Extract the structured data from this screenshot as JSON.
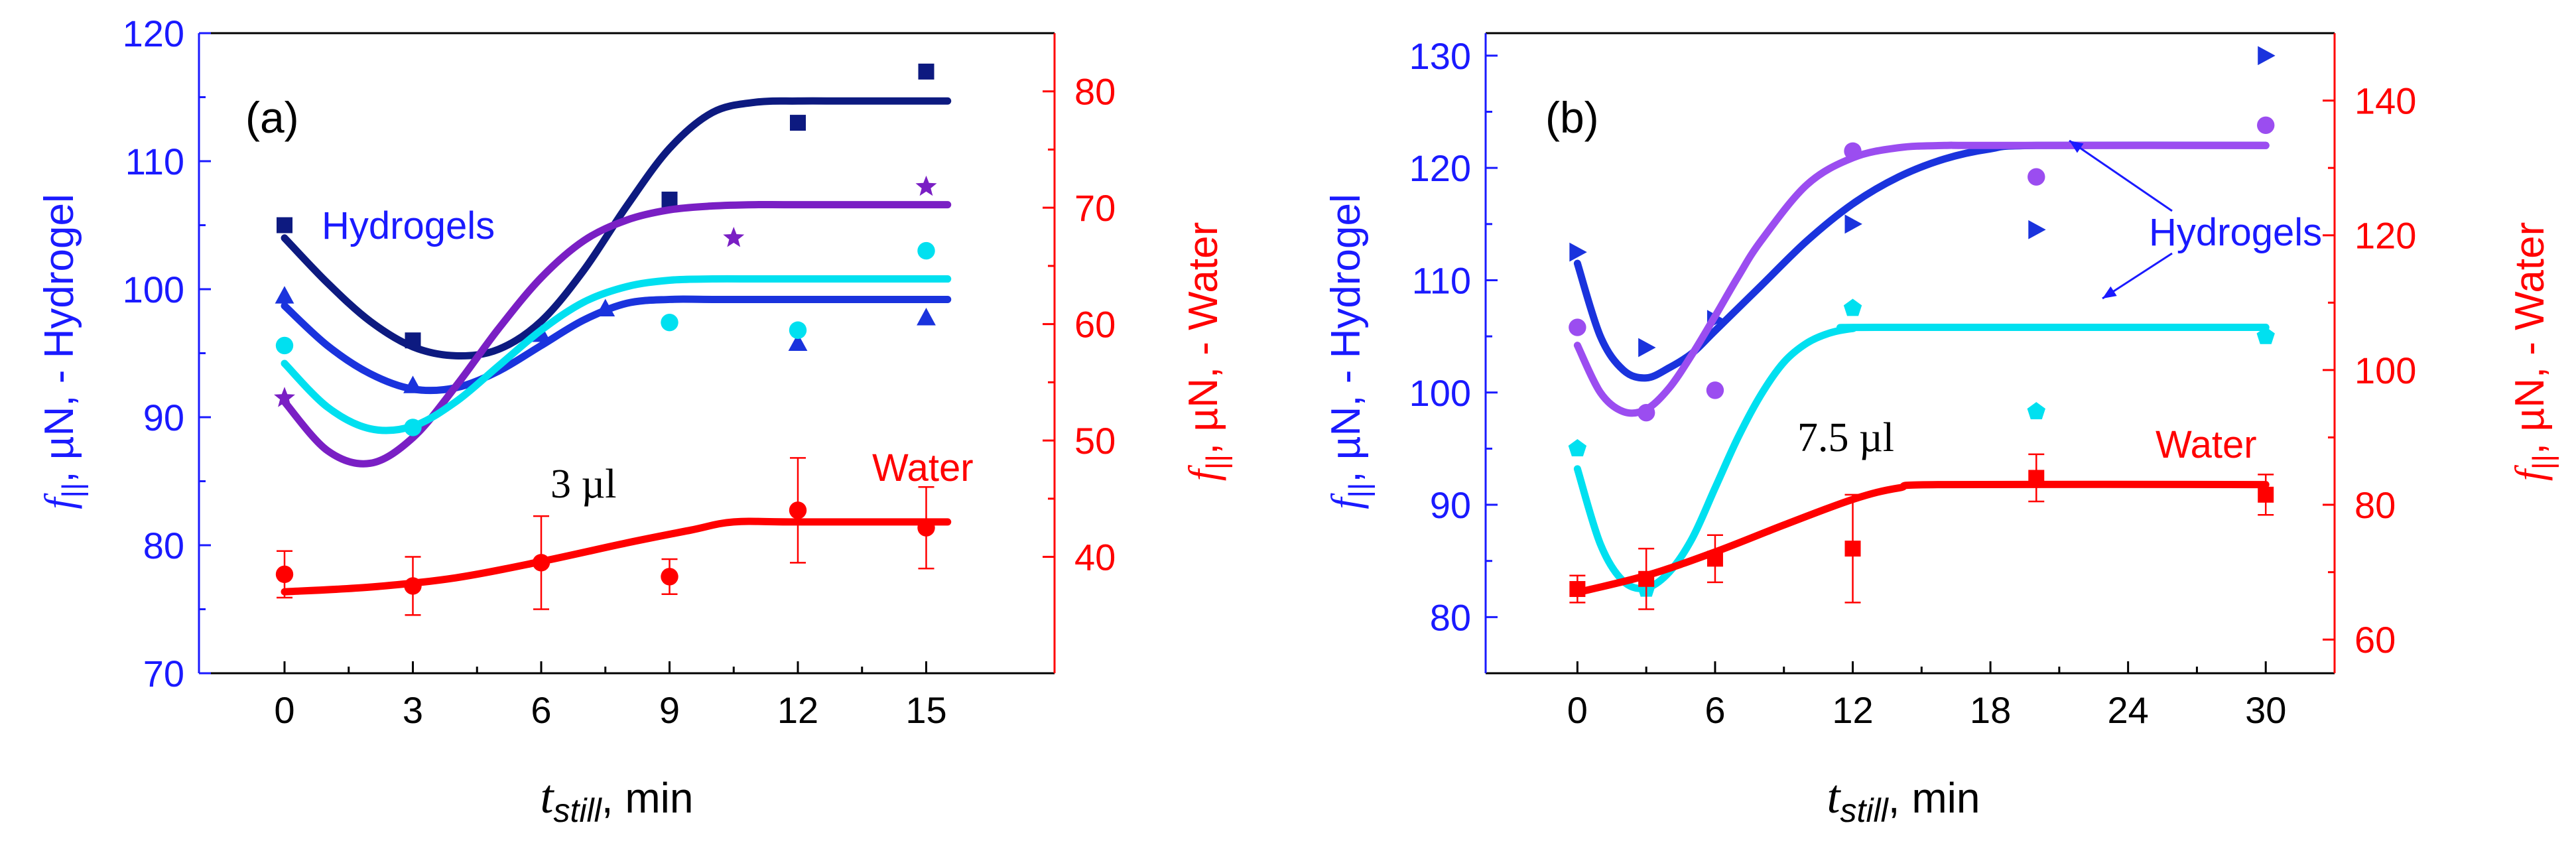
{
  "chart_data": [
    {
      "type": "scatter",
      "panel_label": "(a)",
      "volume_label": "3 µl",
      "xlabel": {
        "main": "t",
        "sub": "still",
        "rest": ", min"
      },
      "ylabel_left": {
        "main": "f",
        "sub": "||",
        "rest": ", µN, - Hydrogel"
      },
      "ylabel_right": {
        "main": "f",
        "sub": "||",
        "rest": ", µN, - Water"
      },
      "xlim": [
        -2,
        18
      ],
      "ylim_left": [
        70,
        120
      ],
      "ylim_right": [
        30,
        85
      ],
      "xticks": [
        0,
        3,
        6,
        9,
        12,
        15
      ],
      "yticks_left": [
        70,
        80,
        90,
        100,
        110,
        120
      ],
      "yticks_right": [
        40,
        50,
        60,
        70,
        80
      ],
      "annotations": {
        "hydrogels": "Hydrogels",
        "water": "Water"
      },
      "colors": {
        "left_axis": "#1a1aff",
        "right_axis": "#ff0000"
      },
      "series": [
        {
          "color": "#0d1a80",
          "marker": "square",
          "axis": "left",
          "x": [
            0,
            3,
            9,
            12,
            15
          ],
          "y": [
            105,
            96,
            107,
            113,
            117
          ],
          "fit_x": [
            0,
            1,
            2,
            3,
            4,
            5,
            6,
            7,
            8,
            9,
            10,
            11,
            12,
            13,
            14,
            15.5
          ],
          "fit_y": [
            104,
            100.5,
            97.5,
            95.5,
            94.8,
            95.3,
            97.5,
            101.5,
            106.5,
            111,
            113.8,
            114.6,
            114.7,
            114.7,
            114.7,
            114.7
          ]
        },
        {
          "color": "#1a33dd",
          "marker": "triangle-up",
          "axis": "left",
          "x": [
            0,
            3,
            6,
            7.5,
            12,
            15
          ],
          "y": [
            99.5,
            92.5,
            96.5,
            98.5,
            95.8,
            97.8
          ],
          "fit_x": [
            0,
            1,
            2,
            3,
            4,
            5,
            6,
            7,
            8,
            9,
            10,
            12,
            15.5
          ],
          "fit_y": [
            98.7,
            95.6,
            93.4,
            92.2,
            92.3,
            93.6,
            95.6,
            97.6,
            98.9,
            99.2,
            99.2,
            99.2,
            99.2
          ]
        },
        {
          "color": "#7a1fc4",
          "marker": "star",
          "axis": "left",
          "x": [
            0,
            10.5,
            15
          ],
          "y": [
            91.5,
            104,
            108
          ],
          "fit_x": [
            0,
            1,
            2,
            3,
            4,
            5,
            6,
            7,
            8,
            9,
            10,
            11,
            12,
            15.5
          ],
          "fit_y": [
            91.2,
            87.4,
            86.4,
            88.4,
            92.4,
            96.9,
            100.9,
            103.8,
            105.4,
            106.2,
            106.5,
            106.6,
            106.6,
            106.6
          ]
        },
        {
          "color": "#00e0f0",
          "marker": "circle",
          "axis": "left",
          "x": [
            0,
            3,
            9,
            12,
            15
          ],
          "y": [
            95.6,
            89.2,
            97.4,
            96.8,
            103
          ],
          "fit_x": [
            0,
            1,
            2,
            3,
            4,
            5,
            6,
            7,
            8,
            9,
            10,
            11,
            12,
            15.5
          ],
          "fit_y": [
            94.2,
            90.8,
            89.1,
            89.3,
            91.2,
            94,
            96.8,
            99,
            100.2,
            100.7,
            100.8,
            100.8,
            100.8,
            100.8
          ]
        },
        {
          "color": "#ff0000",
          "marker": "circle",
          "axis": "right",
          "x": [
            0,
            3,
            6,
            9,
            12,
            15
          ],
          "y": [
            38.5,
            37.5,
            39.5,
            38.3,
            44,
            42.5
          ],
          "err": [
            2,
            2.5,
            4,
            1.5,
            4.5,
            3.5
          ],
          "fit_x": [
            0,
            2,
            4,
            6,
            8,
            9.5,
            10.5,
            12,
            15.5
          ],
          "fit_y": [
            37,
            37.4,
            38.2,
            39.6,
            41.2,
            42.3,
            43,
            43,
            43
          ]
        }
      ]
    },
    {
      "type": "scatter",
      "panel_label": "(b)",
      "volume_label": "7.5 µl",
      "xlabel": {
        "main": "t",
        "sub": "still",
        "rest": ", min"
      },
      "ylabel_left": {
        "main": "f",
        "sub": "||",
        "rest": ", µN, - Hydrogel"
      },
      "ylabel_right": {
        "main": "f",
        "sub": "||",
        "rest": ", µN, - Water"
      },
      "xlim": [
        -4,
        33
      ],
      "ylim_left": [
        75,
        132
      ],
      "ylim_right": [
        55,
        150
      ],
      "xticks": [
        0,
        6,
        12,
        18,
        24,
        30
      ],
      "yticks_left": [
        80,
        90,
        100,
        110,
        120,
        130
      ],
      "yticks_right": [
        60,
        80,
        100,
        120,
        140
      ],
      "annotations": {
        "hydrogels": "Hydrogels",
        "water": "Water"
      },
      "colors": {
        "left_axis": "#1a1aff",
        "right_axis": "#ff0000"
      },
      "series": [
        {
          "color": "#1a33dd",
          "marker": "triangle-right",
          "axis": "left",
          "x": [
            0,
            3,
            6,
            12,
            20,
            30
          ],
          "y": [
            112.5,
            104,
            106.5,
            115,
            114.5,
            130
          ],
          "fit_x": [
            0,
            1,
            2,
            3,
            4,
            5,
            6,
            8,
            10,
            12,
            14,
            16,
            18,
            20,
            30
          ],
          "fit_y": [
            111.5,
            105,
            102,
            101.3,
            102.2,
            103.5,
            105.5,
            109.5,
            113.5,
            116.8,
            119.2,
            120.8,
            121.7,
            122,
            122
          ]
        },
        {
          "color": "#9b4df0",
          "marker": "circle",
          "axis": "left",
          "x": [
            0,
            3,
            6,
            12,
            20,
            30
          ],
          "y": [
            105.8,
            98.2,
            100.2,
            121.5,
            119.2,
            123.8
          ],
          "fit_x": [
            0,
            1,
            2,
            3,
            4,
            5,
            6,
            7,
            8,
            10,
            12,
            14,
            16,
            18,
            30
          ],
          "fit_y": [
            104.2,
            100,
            98.3,
            98.5,
            100.4,
            103.4,
            106.8,
            110.3,
            113.5,
            118.5,
            120.9,
            121.8,
            122,
            122,
            122
          ]
        },
        {
          "color": "#00e0f0",
          "marker": "pentagon",
          "axis": "left",
          "x": [
            0,
            3,
            12,
            20,
            30
          ],
          "y": [
            95,
            82.5,
            107.5,
            98.3,
            105
          ],
          "fit_x": [
            0,
            1,
            2,
            3,
            4,
            5,
            6,
            7,
            8,
            9,
            10,
            11,
            12,
            13,
            30
          ],
          "fit_y": [
            93.2,
            86.5,
            83.2,
            82.6,
            84,
            87,
            91.5,
            96,
            99.8,
            102.7,
            104.4,
            105.3,
            105.7,
            105.8,
            105.8
          ]
        },
        {
          "color": "#ff0000",
          "marker": "square",
          "axis": "right",
          "x": [
            0,
            3,
            6,
            12,
            20,
            30
          ],
          "y": [
            67.5,
            69,
            72,
            73.5,
            84,
            81.5
          ],
          "err": [
            2,
            4.5,
            3.5,
            8,
            3.5,
            3
          ],
          "fit_x": [
            0,
            3,
            6,
            9,
            12,
            14,
            16,
            30
          ],
          "fit_y": [
            67,
            69.5,
            73,
            77,
            80.8,
            82.5,
            83,
            83
          ]
        }
      ]
    }
  ]
}
